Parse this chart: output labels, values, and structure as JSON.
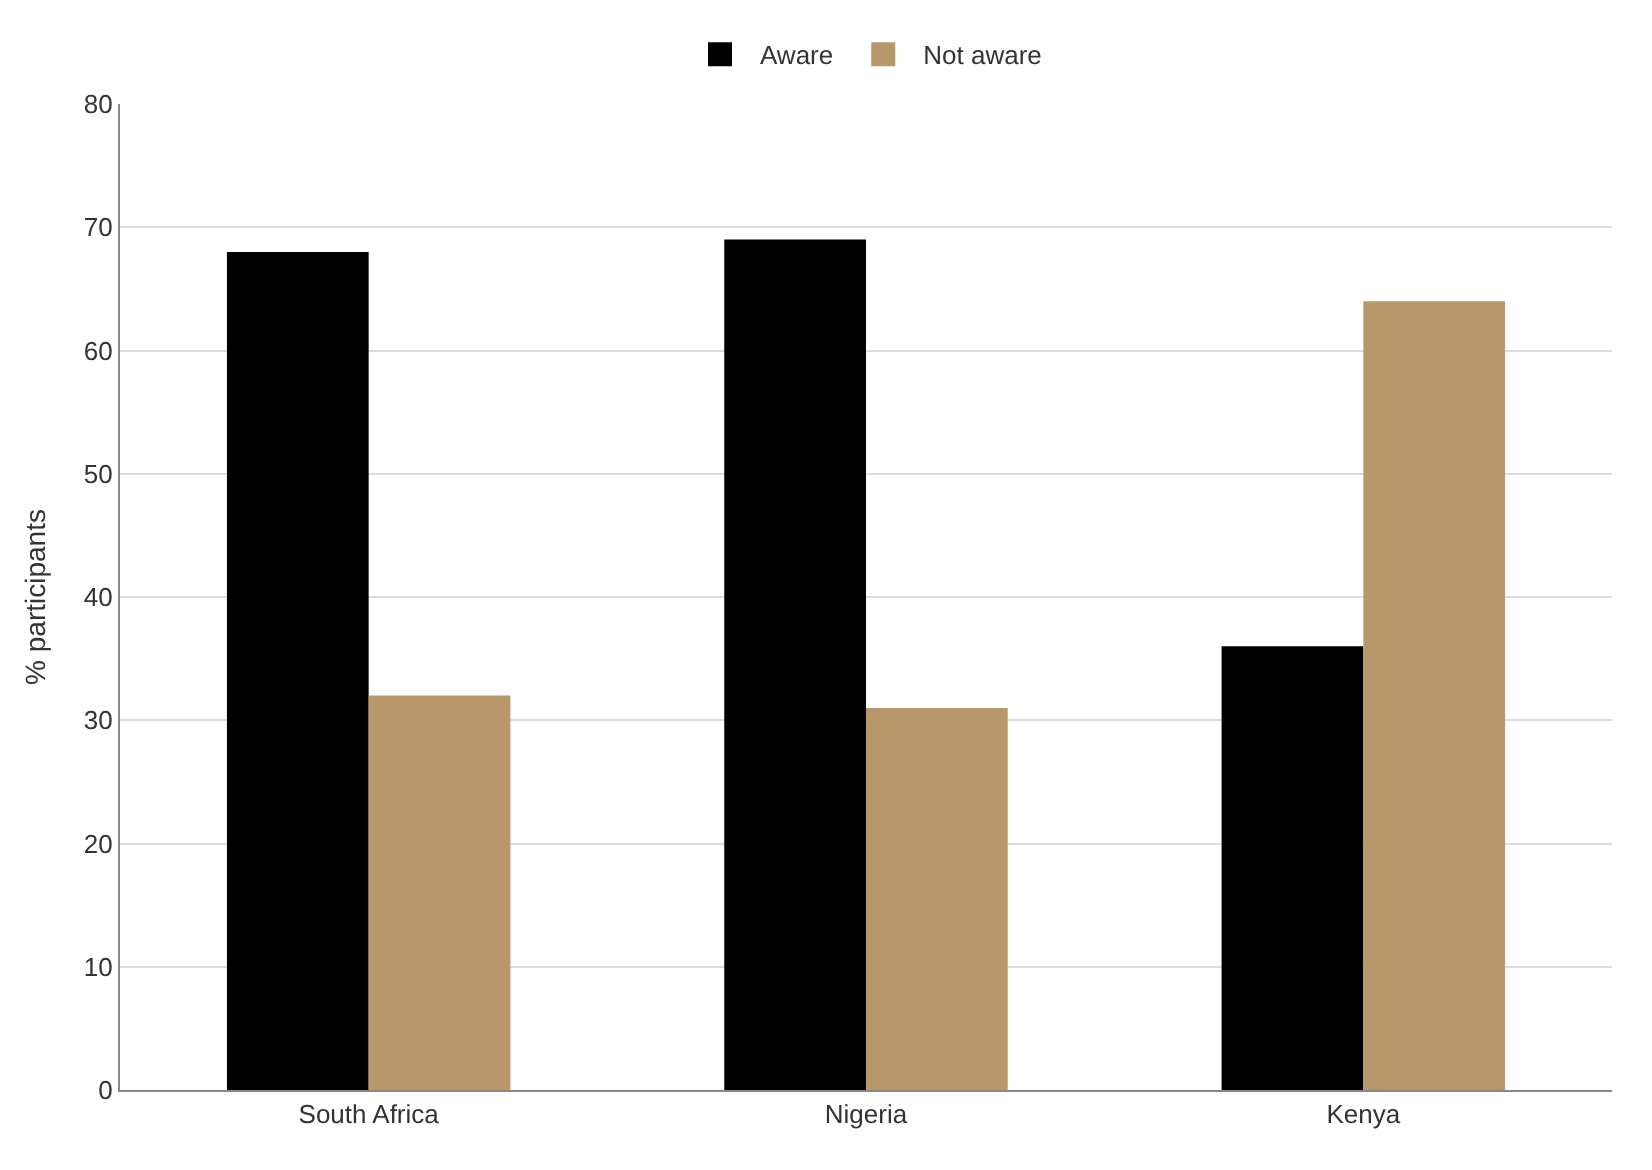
{
  "chart_data": {
    "type": "bar",
    "ylabel": "% participants",
    "categories": [
      "South Africa",
      "Nigeria",
      "Kenya"
    ],
    "series": [
      {
        "name": "Aware",
        "color": "#000000",
        "values": [
          68,
          69,
          36
        ]
      },
      {
        "name": "Not aware",
        "color": "#b8976a",
        "values": [
          32,
          31,
          64
        ]
      }
    ],
    "ylim": [
      0,
      80
    ],
    "yticks": [
      0,
      10,
      20,
      30,
      40,
      50,
      60,
      70,
      80
    ],
    "grid": "y",
    "legend": "top"
  }
}
